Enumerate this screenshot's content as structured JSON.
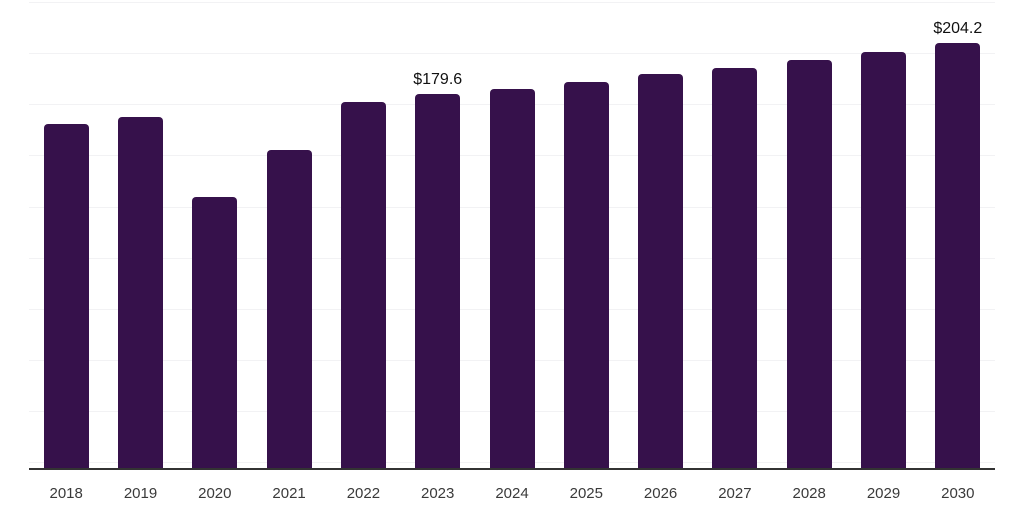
{
  "chart_data": {
    "type": "bar",
    "title": "",
    "xlabel": "",
    "ylabel": "",
    "categories": [
      "2018",
      "2019",
      "2020",
      "2021",
      "2022",
      "2023",
      "2024",
      "2025",
      "2026",
      "2027",
      "2028",
      "2029",
      "2030"
    ],
    "values": [
      164.6,
      168.4,
      129.3,
      152.1,
      175.7,
      179.6,
      181.7,
      185.5,
      189.0,
      192.0,
      196.0,
      200.1,
      204.2
    ],
    "data_labels": [
      {
        "category": "2023",
        "text": "$179.6"
      },
      {
        "category": "2030",
        "text": "$204.2"
      }
    ],
    "y_axis": {
      "implied_min": 0,
      "implied_max": 225,
      "gridline_interval": 25,
      "tick_labels_visible": false
    },
    "grid": {
      "horizontal": true,
      "vertical": false,
      "horizontal_line_count": 10
    },
    "legend": "none",
    "colors": {
      "bar": "#36114B",
      "gridline": "#F2F2F4",
      "axis_line": "#333333",
      "axis_label_text": "#3A3A3A",
      "data_label_text": "#111111"
    }
  }
}
